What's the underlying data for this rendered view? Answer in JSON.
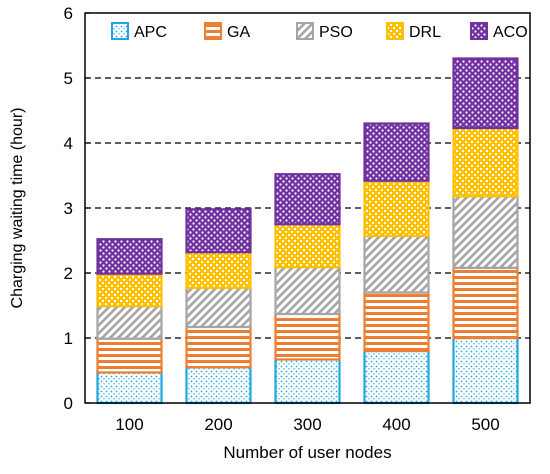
{
  "chart_data": {
    "type": "bar",
    "stacked": true,
    "title": "",
    "xlabel": "Number of user nodes",
    "ylabel": "Charging waiting time (hour)",
    "categories": [
      "100",
      "200",
      "300",
      "400",
      "500"
    ],
    "ylim": [
      0,
      6
    ],
    "yticks": [
      "0",
      "1",
      "2",
      "3",
      "4",
      "5",
      "6"
    ],
    "grid": "horizontal dashed",
    "legend_position": "top",
    "series": [
      {
        "name": "APC",
        "color": "#1fa8e0",
        "pattern": "dots",
        "values": [
          0.47,
          0.55,
          0.67,
          0.8,
          1.0
        ]
      },
      {
        "name": "GA",
        "color": "#ed7d31",
        "pattern": "horizontal-lines",
        "values": [
          0.52,
          0.62,
          0.7,
          0.9,
          1.08
        ]
      },
      {
        "name": "PSO",
        "color": "#a5a5a5",
        "pattern": "diagonal-lines",
        "values": [
          0.5,
          0.6,
          0.72,
          0.87,
          1.1
        ]
      },
      {
        "name": "DRL",
        "color": "#ffc000",
        "pattern": "weave",
        "values": [
          0.5,
          0.55,
          0.66,
          0.85,
          1.05
        ]
      },
      {
        "name": "ACO",
        "color": "#7030a0",
        "pattern": "dense-dots",
        "values": [
          0.53,
          0.66,
          0.77,
          0.88,
          1.07
        ]
      }
    ]
  }
}
